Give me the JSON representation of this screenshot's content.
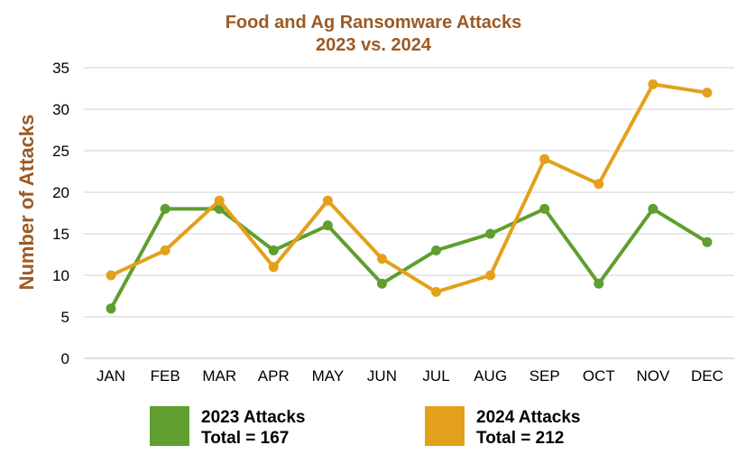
{
  "chart_data": {
    "type": "line",
    "title": "Food and Ag Ransomware Attacks",
    "subtitle": "2023 vs. 2024",
    "xlabel": "",
    "ylabel": "Number of Attacks",
    "categories": [
      "JAN",
      "FEB",
      "MAR",
      "APR",
      "MAY",
      "JUN",
      "JUL",
      "AUG",
      "SEP",
      "OCT",
      "NOV",
      "DEC"
    ],
    "ylim": [
      0,
      35
    ],
    "yticks": [
      0,
      5,
      10,
      15,
      20,
      25,
      30,
      35
    ],
    "grid": true,
    "legend_position": "bottom",
    "series": [
      {
        "name": "2023 Attacks",
        "legend_line2": "Total = 167",
        "color": "#5f9e2f",
        "values": [
          6,
          18,
          18,
          13,
          16,
          9,
          13,
          15,
          18,
          9,
          18,
          14
        ]
      },
      {
        "name": "2024 Attacks",
        "legend_line2": "Total = 212",
        "color": "#e3a01b",
        "values": [
          10,
          13,
          19,
          11,
          19,
          12,
          8,
          10,
          24,
          21,
          33,
          32
        ]
      }
    ]
  },
  "colors": {
    "title": "#9c5a24",
    "ylabel": "#9c5a24",
    "grid": "#d0d0d0",
    "axis": "#bfbfbf"
  }
}
